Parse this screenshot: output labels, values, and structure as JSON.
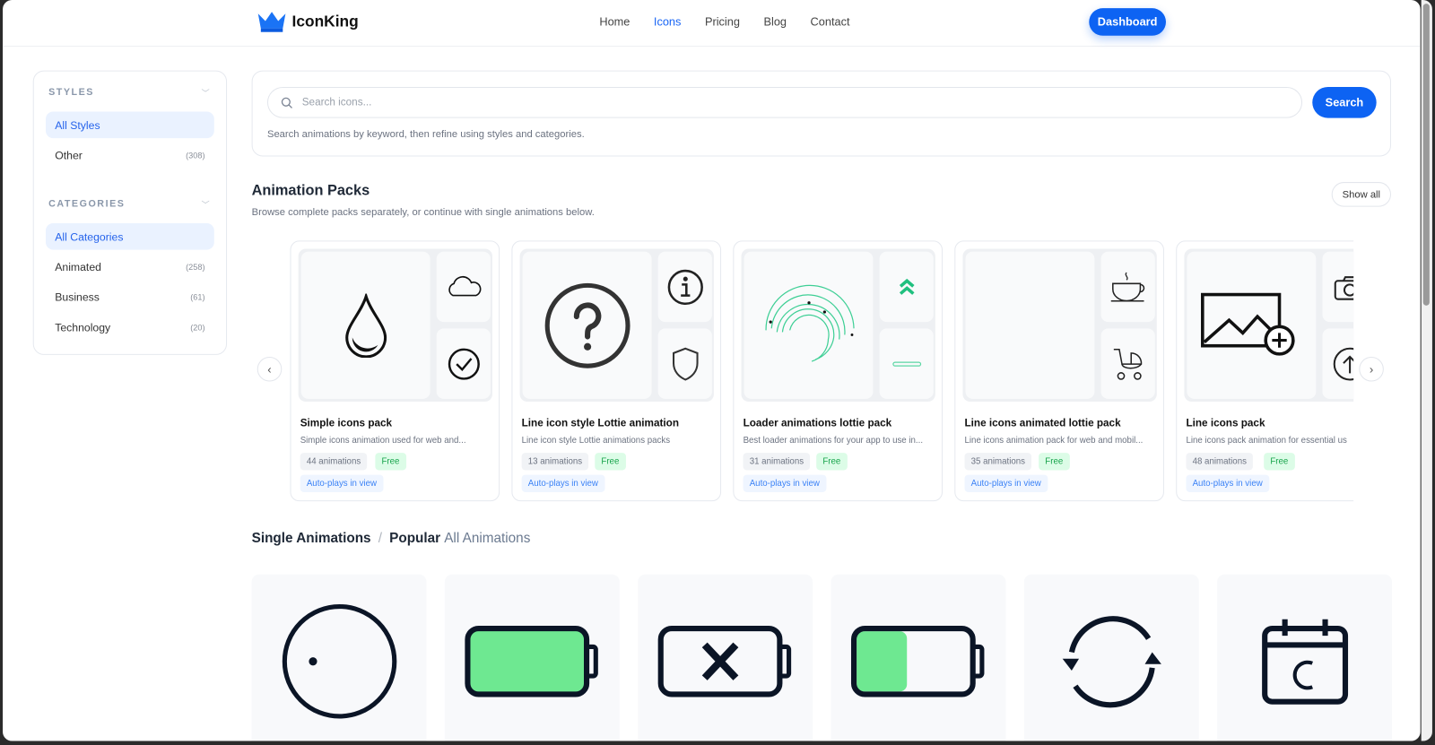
{
  "header": {
    "brand": "IconKing",
    "nav": [
      "Home",
      "Icons",
      "Pricing",
      "Blog",
      "Contact"
    ],
    "active_nav": "Icons",
    "dashboard_label": "Dashboard",
    "accent": "#0d63f3"
  },
  "sidebar": {
    "styles_heading": "STYLES",
    "styles": [
      {
        "label": "All Styles",
        "count": ""
      },
      {
        "label": "Other",
        "count": "(308)"
      }
    ],
    "categories_heading": "CATEGORIES",
    "categories": [
      {
        "label": "All Categories",
        "count": ""
      },
      {
        "label": "Animated",
        "count": "(258)"
      },
      {
        "label": "Business",
        "count": "(61)"
      },
      {
        "label": "Technology",
        "count": "(20)"
      }
    ]
  },
  "search": {
    "placeholder": "Search icons...",
    "button": "Search",
    "hint": "Search animations by keyword, then refine using styles and categories."
  },
  "packs": {
    "title": "Animation Packs",
    "subtitle": "Browse complete packs separately, or continue with single animations below.",
    "show_all": "Show all",
    "items": [
      {
        "title": "Simple icons pack",
        "desc": "Simple icons animation used for web and...",
        "count": "44 animations",
        "price": "Free",
        "autoplay": "Auto-plays in view",
        "icons": [
          "water-drop-icon",
          "cloud-icon",
          "check-circle-icon"
        ]
      },
      {
        "title": "Line icon style Lottie animation",
        "desc": "Line icon style Lottie animations packs",
        "count": "13 animations",
        "price": "Free",
        "autoplay": "Auto-plays in view",
        "icons": [
          "question-circle-icon",
          "info-circle-icon",
          "shield-icon"
        ]
      },
      {
        "title": "Loader animations lottie pack",
        "desc": "Best loader animations for your app to use in...",
        "count": "31 animations",
        "price": "Free",
        "autoplay": "Auto-plays in view",
        "icons": [
          "loader-arcs-icon",
          "double-chevron-up-icon",
          "progress-bar-icon"
        ]
      },
      {
        "title": "Line icons animated lottie pack",
        "desc": "Line icons animation pack for web and mobil...",
        "count": "35 animations",
        "price": "Free",
        "autoplay": "Auto-plays in view",
        "icons": [
          "blank",
          "coffee-cup-icon",
          "baby-stroller-icon"
        ]
      },
      {
        "title": "Line icons pack",
        "desc": "Line icons pack animation for essential us",
        "count": "48 animations",
        "price": "Free",
        "autoplay": "Auto-plays in view",
        "icons": [
          "image-add-icon",
          "camera-icon",
          "upload-icon"
        ]
      }
    ]
  },
  "singles": {
    "section": "Single Animations",
    "separator": "/",
    "popular": "Popular",
    "all": "All Animations",
    "icons": [
      "clock-circle-icon",
      "battery-full-icon",
      "battery-error-icon",
      "battery-half-icon",
      "refresh-icon",
      "calendar-icon"
    ]
  }
}
